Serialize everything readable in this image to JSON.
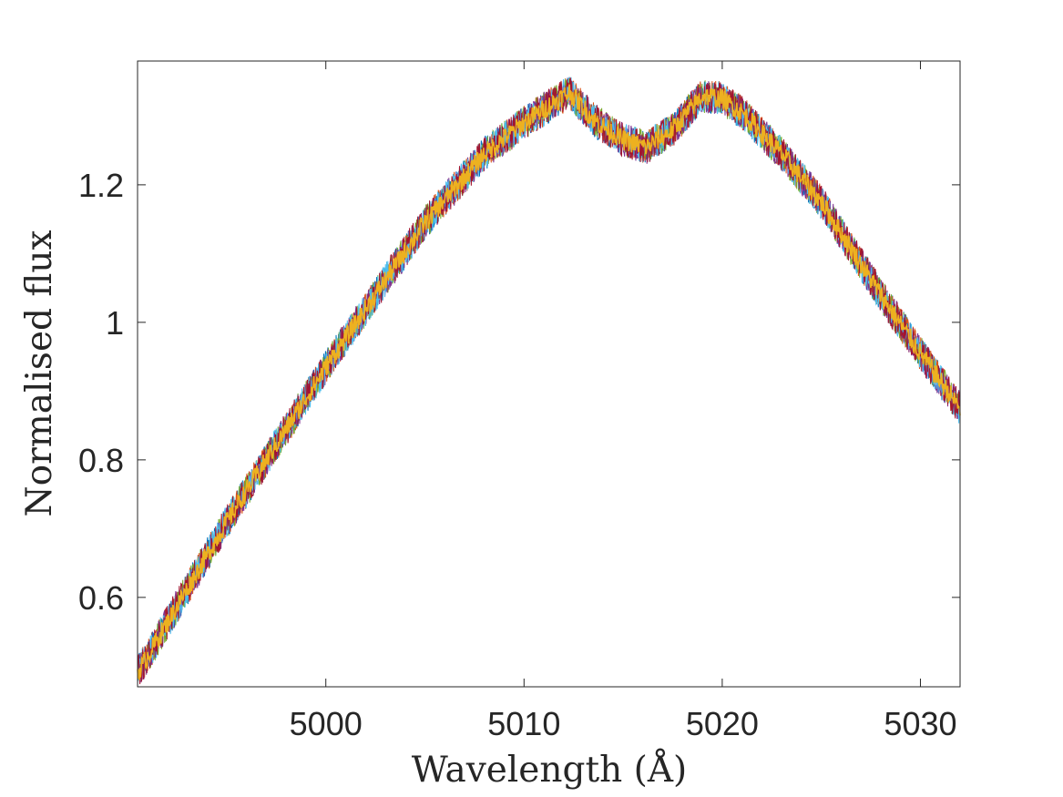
{
  "chart_data": {
    "type": "line",
    "title": "",
    "xlabel": "Wavelength (Å)",
    "ylabel": "Normalised flux",
    "xlim": [
      4990.5,
      5032
    ],
    "ylim": [
      0.47,
      1.38
    ],
    "xticks": [
      5000,
      5010,
      5020,
      5030
    ],
    "xtick_labels": [
      "5000",
      "5010",
      "5020",
      "5030"
    ],
    "yticks": [
      0.6,
      0.8,
      1.0,
      1.2
    ],
    "ytick_labels": [
      "0.6",
      "0.8",
      "1",
      "1.2"
    ],
    "grid": false,
    "legend": "none",
    "series_colors": [
      "#0072BD",
      "#D95319",
      "#77AC30",
      "#7E2F8E",
      "#4DBEEE",
      "#A2142F",
      "#EDB120"
    ],
    "noise_amplitude": 0.025,
    "curve": {
      "x": [
        4990.5,
        4995,
        5000,
        5005,
        5008,
        5010,
        5011,
        5012.3,
        5013.5,
        5015,
        5016.2,
        5017.5,
        5019,
        5020,
        5021,
        5023,
        5025,
        5028,
        5030,
        5032
      ],
      "y": [
        0.49,
        0.71,
        0.935,
        1.145,
        1.245,
        1.29,
        1.31,
        1.335,
        1.295,
        1.265,
        1.255,
        1.28,
        1.33,
        1.325,
        1.305,
        1.245,
        1.175,
        1.04,
        0.955,
        0.875
      ]
    }
  }
}
